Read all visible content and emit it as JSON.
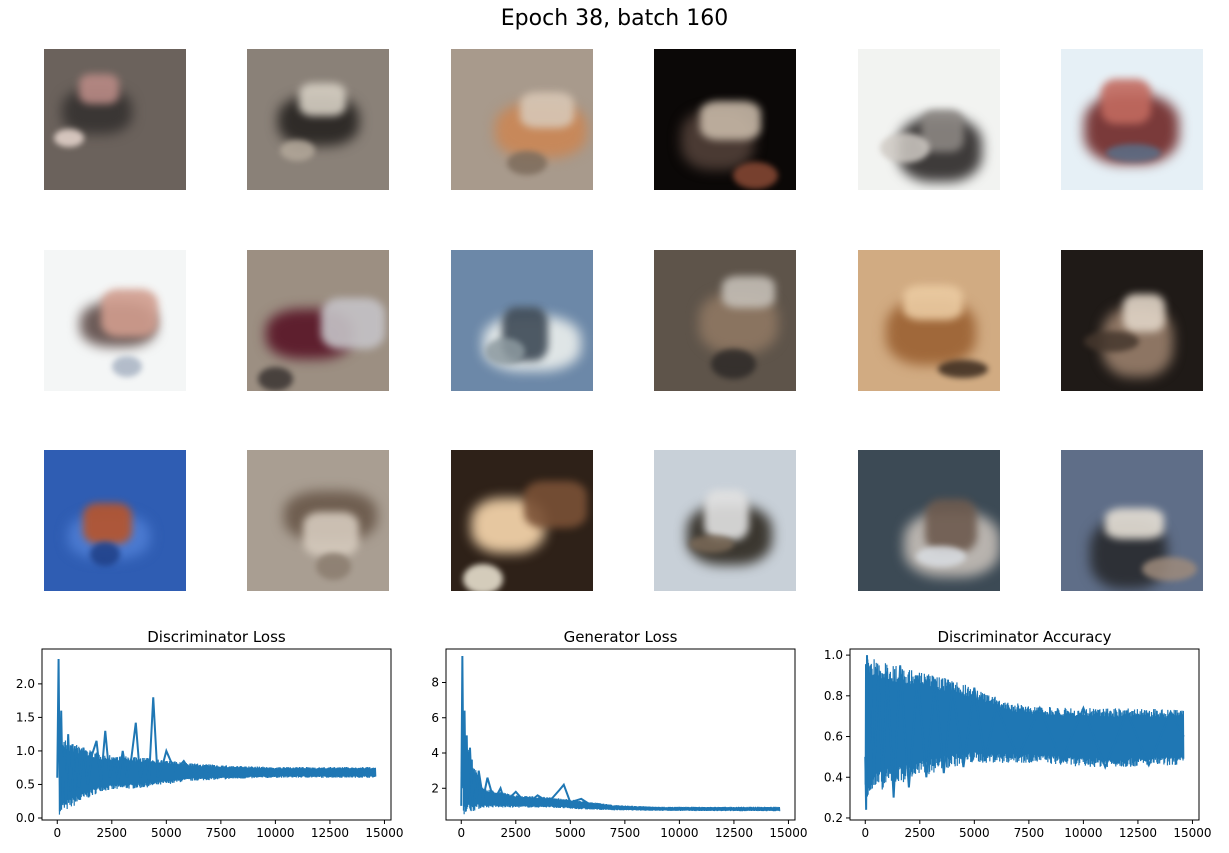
{
  "suptitle": "Epoch 38, batch 160",
  "sample_images": [
    {
      "bg": "#6b625c",
      "c1": "#3a3634",
      "c2": "#b98a85",
      "c3": "#e8d7cf"
    },
    {
      "bg": "#8a8178",
      "c1": "#2f2b28",
      "c2": "#d6cfc3",
      "c3": "#b3a89a"
    },
    {
      "bg": "#a89a8c",
      "c1": "#c7885a",
      "c2": "#d7c7b6",
      "c3": "#7d6c5c"
    },
    {
      "bg": "#0b0807",
      "c1": "#4a3a33",
      "c2": "#c7b8a7",
      "c3": "#8a4a35"
    },
    {
      "bg": "#f2f3f1",
      "c1": "#3e3b3a",
      "c2": "#8b8682",
      "c3": "#cfcac4"
    },
    {
      "bg": "#e6f0f6",
      "c1": "#7a3a3a",
      "c2": "#c26a5f",
      "c3": "#5a6f88"
    },
    {
      "bg": "#f4f6f6",
      "c1": "#6c5b58",
      "c2": "#d19d8e",
      "c3": "#a8b3c3"
    },
    {
      "bg": "#9c8f82",
      "c1": "#5e1f2e",
      "c2": "#c5c3c7",
      "c3": "#3a3432"
    },
    {
      "bg": "#6c88a8",
      "c1": "#dfe5e6",
      "c2": "#3e4a56",
      "c3": "#8d9aa0"
    },
    {
      "bg": "#5e544a",
      "c1": "#8a7460",
      "c2": "#c4beb6",
      "c3": "#2e2a28"
    },
    {
      "bg": "#d1ab82",
      "c1": "#a0683a",
      "c2": "#ebcba2",
      "c3": "#3a2a1e"
    },
    {
      "bg": "#1f1a17",
      "c1": "#8d7563",
      "c2": "#e0d4c6",
      "c3": "#45372d"
    },
    {
      "bg": "#2f5db3",
      "c1": "#4b7ad0",
      "c2": "#b8542a",
      "c3": "#1f3f86"
    },
    {
      "bg": "#a99e92",
      "c1": "#6f5e50",
      "c2": "#d5cabd",
      "c3": "#8b7d6f"
    },
    {
      "bg": "#2e2118",
      "c1": "#e6c7a0",
      "c2": "#7a5136",
      "c3": "#f1ead8"
    },
    {
      "bg": "#c8d0d8",
      "c1": "#3b3730",
      "c2": "#e2e2e2",
      "c3": "#7b6a58"
    },
    {
      "bg": "#3c4a55",
      "c1": "#b8b3ae",
      "c2": "#6d5a4e",
      "c3": "#d9dde2"
    },
    {
      "bg": "#5f6e88",
      "c1": "#2d3036",
      "c2": "#e6e0d6",
      "c3": "#9e8b7c"
    }
  ],
  "chart_data": [
    {
      "type": "line",
      "title": "Discriminator Loss",
      "xlabel": "",
      "ylabel": "",
      "xlim": [
        -700,
        15300
      ],
      "ylim": [
        -0.03,
        2.52
      ],
      "xticks": [
        0,
        2500,
        5000,
        7500,
        10000,
        12500,
        15000
      ],
      "yticks": [
        0.0,
        0.5,
        1.0,
        1.5,
        2.0
      ],
      "ytick_labels": [
        "0.0",
        "0.5",
        "1.0",
        "1.5",
        "2.0"
      ],
      "color": "#1f77b4",
      "x": [
        0,
        60,
        120,
        180,
        250,
        320,
        400,
        500,
        600,
        700,
        800,
        900,
        1000,
        1200,
        1400,
        1600,
        1800,
        2000,
        2200,
        2400,
        2600,
        2800,
        3000,
        3200,
        3400,
        3600,
        3800,
        4000,
        4200,
        4400,
        4600,
        4800,
        5000,
        5400,
        5800,
        6200,
        6600,
        7000,
        7500,
        8000,
        8500,
        9000,
        9500,
        10000,
        10500,
        11000,
        11500,
        12000,
        12500,
        13000,
        13500,
        14000,
        14500
      ],
      "y": [
        0.6,
        2.37,
        0.1,
        1.6,
        0.35,
        1.0,
        0.2,
        1.25,
        0.4,
        1.1,
        0.35,
        0.9,
        0.45,
        1.05,
        0.5,
        0.95,
        1.15,
        0.55,
        1.3,
        0.6,
        0.85,
        0.55,
        1.0,
        0.6,
        0.9,
        1.42,
        0.6,
        0.85,
        0.55,
        1.8,
        0.6,
        0.75,
        1.0,
        0.7,
        0.85,
        0.65,
        0.75,
        0.68,
        0.72,
        0.65,
        0.7,
        0.68,
        0.72,
        0.7,
        0.65,
        0.72,
        0.68,
        0.7,
        0.66,
        0.72,
        0.68,
        0.7,
        0.66
      ],
      "band": {
        "x": [
          100,
          2000,
          4000,
          6000,
          8000,
          10000,
          12000,
          14600
        ],
        "lo": [
          0.05,
          0.4,
          0.45,
          0.55,
          0.58,
          0.6,
          0.6,
          0.6
        ],
        "hi": [
          1.2,
          0.95,
          0.9,
          0.82,
          0.78,
          0.76,
          0.76,
          0.76
        ]
      }
    },
    {
      "type": "line",
      "title": "Generator Loss",
      "xlabel": "",
      "ylabel": "",
      "xlim": [
        -700,
        15300
      ],
      "ylim": [
        0.2,
        9.9
      ],
      "xticks": [
        0,
        2500,
        5000,
        7500,
        10000,
        12500,
        15000
      ],
      "yticks": [
        2,
        4,
        6,
        8
      ],
      "ytick_labels": [
        "2",
        "4",
        "6",
        "8"
      ],
      "color": "#1f77b4",
      "x": [
        0,
        50,
        100,
        150,
        200,
        250,
        300,
        400,
        500,
        600,
        700,
        800,
        1000,
        1200,
        1500,
        1800,
        2000,
        2500,
        3000,
        3500,
        4000,
        4500,
        4700,
        5000,
        5500,
        6000,
        7000,
        8000,
        9000,
        10000,
        11000,
        12000,
        13000,
        14000,
        14600
      ],
      "y": [
        1.0,
        9.5,
        2.0,
        6.4,
        1.5,
        5.0,
        1.4,
        4.3,
        1.3,
        2.8,
        1.2,
        3.0,
        1.4,
        2.6,
        1.3,
        2.0,
        1.2,
        1.8,
        1.1,
        1.6,
        1.2,
        1.9,
        2.2,
        1.2,
        1.4,
        1.0,
        0.95,
        0.9,
        0.85,
        0.85,
        0.85,
        0.85,
        0.85,
        0.85,
        0.85
      ],
      "band": {
        "x": [
          100,
          1000,
          2500,
          4000,
          5500,
          7000,
          9000,
          12000,
          14600
        ],
        "lo": [
          0.5,
          0.9,
          0.9,
          0.9,
          0.8,
          0.75,
          0.72,
          0.7,
          0.7
        ],
        "hi": [
          5.0,
          2.0,
          1.6,
          1.5,
          1.3,
          1.05,
          0.95,
          0.95,
          0.95
        ]
      }
    },
    {
      "type": "line",
      "title": "Discriminator Accuracy",
      "xlabel": "",
      "ylabel": "",
      "xlim": [
        -700,
        15300
      ],
      "ylim": [
        0.19,
        1.03
      ],
      "xticks": [
        0,
        2500,
        5000,
        7500,
        10000,
        12500,
        15000
      ],
      "yticks": [
        0.2,
        0.4,
        0.6,
        0.8,
        1.0
      ],
      "ytick_labels": [
        "0.2",
        "0.4",
        "0.6",
        "0.8",
        "1.0"
      ],
      "color": "#1f77b4",
      "x": [
        0,
        40,
        80,
        150,
        250,
        400,
        600,
        800,
        1000,
        1300,
        1600,
        2000,
        2400,
        2800,
        3200,
        3600,
        4000,
        4500,
        5000,
        5500,
        6000,
        7000,
        8000,
        9000,
        10000,
        11000,
        12000,
        13000,
        14000,
        14600
      ],
      "y": [
        0.5,
        0.24,
        1.0,
        0.45,
        0.95,
        0.4,
        0.9,
        0.35,
        0.92,
        0.3,
        0.95,
        0.35,
        0.9,
        0.4,
        0.88,
        0.42,
        0.85,
        0.45,
        0.84,
        0.48,
        0.75,
        0.5,
        0.74,
        0.48,
        0.74,
        0.45,
        0.72,
        0.46,
        0.72,
        0.6
      ],
      "band": {
        "x": [
          0,
          1000,
          2500,
          4000,
          5000,
          6500,
          8000,
          10000,
          12000,
          14600
        ],
        "lo": [
          0.3,
          0.35,
          0.4,
          0.45,
          0.47,
          0.47,
          0.47,
          0.45,
          0.45,
          0.46
        ],
        "hi": [
          1.0,
          0.96,
          0.92,
          0.88,
          0.84,
          0.77,
          0.75,
          0.74,
          0.74,
          0.73
        ]
      }
    }
  ]
}
